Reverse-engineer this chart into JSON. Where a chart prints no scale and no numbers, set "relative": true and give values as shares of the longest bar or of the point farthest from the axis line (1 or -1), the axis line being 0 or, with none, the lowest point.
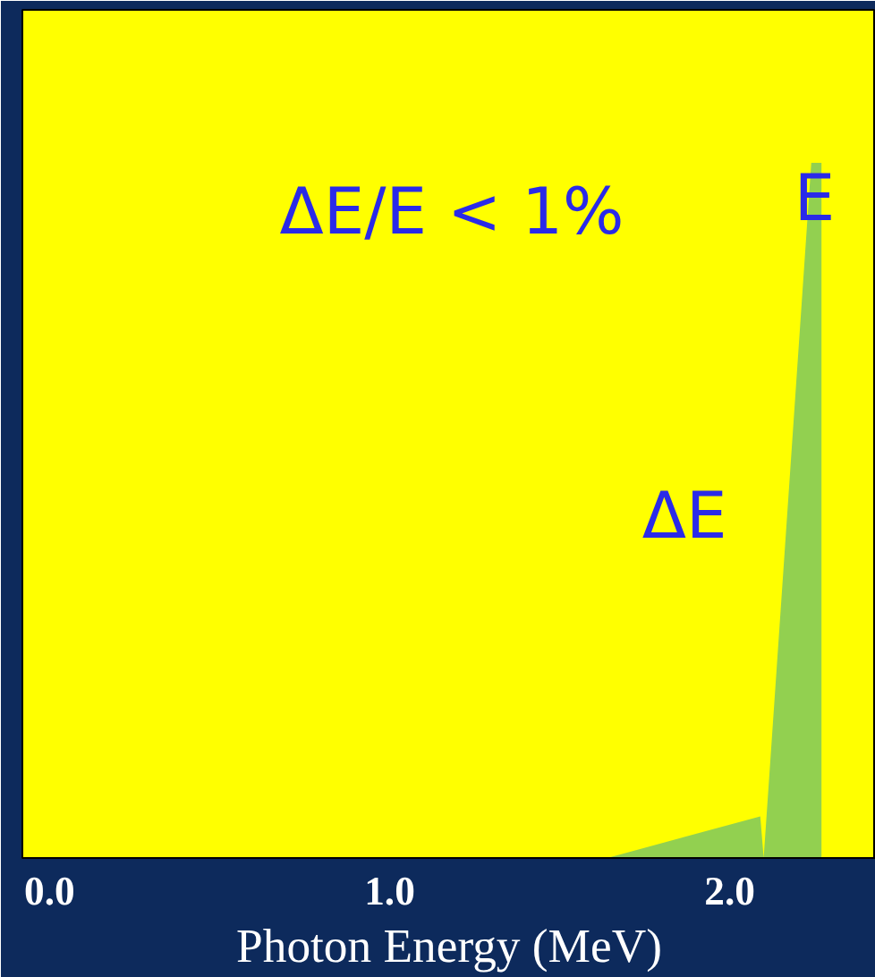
{
  "chart_data": {
    "type": "area",
    "relative": true,
    "xlabel": "Photon Energy (MeV)",
    "x": [
      1.64,
      2.09,
      2.1,
      2.24,
      2.27,
      2.27
    ],
    "series": [
      {
        "color": "#92d050",
        "values": [
          0,
          0.06,
          0,
          1,
          1,
          0
        ]
      }
    ],
    "xlim": [
      -0.08,
      2.43
    ],
    "xticks": [
      {
        "value": 0,
        "label": "0.0"
      },
      {
        "value": 1,
        "label": "1.0"
      },
      {
        "value": 2,
        "label": "2.0"
      }
    ],
    "annotations": [
      "ΔE/E < 1%",
      {
        "text": "E",
        "x": 2.25,
        "y": 1.0
      },
      "ΔE"
    ],
    "grid": false
  }
}
